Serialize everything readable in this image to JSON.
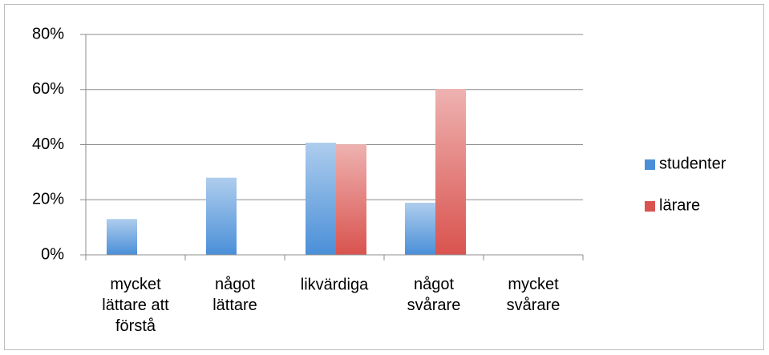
{
  "chart_data": {
    "type": "bar",
    "categories": [
      "mycket\nlättare att\nförstå",
      "något\nlättare",
      "likvärdiga",
      "något\nsvårare",
      "mycket\nsvårare"
    ],
    "series": [
      {
        "name": "studenter",
        "color": "#4a8fd8",
        "values": [
          13,
          28,
          40.7,
          18.9,
          0
        ]
      },
      {
        "name": "lärare",
        "color": "#d9534f",
        "values": [
          0,
          0,
          40.1,
          60.2,
          0
        ]
      }
    ],
    "ylim": [
      0,
      80
    ],
    "yticks": [
      {
        "value": 0,
        "label": "0%"
      },
      {
        "value": 20,
        "label": "20%"
      },
      {
        "value": 40,
        "label": "40%"
      },
      {
        "value": 60,
        "label": "60%"
      },
      {
        "value": 80,
        "label": "80%"
      }
    ],
    "grid": true,
    "legend": "right"
  }
}
